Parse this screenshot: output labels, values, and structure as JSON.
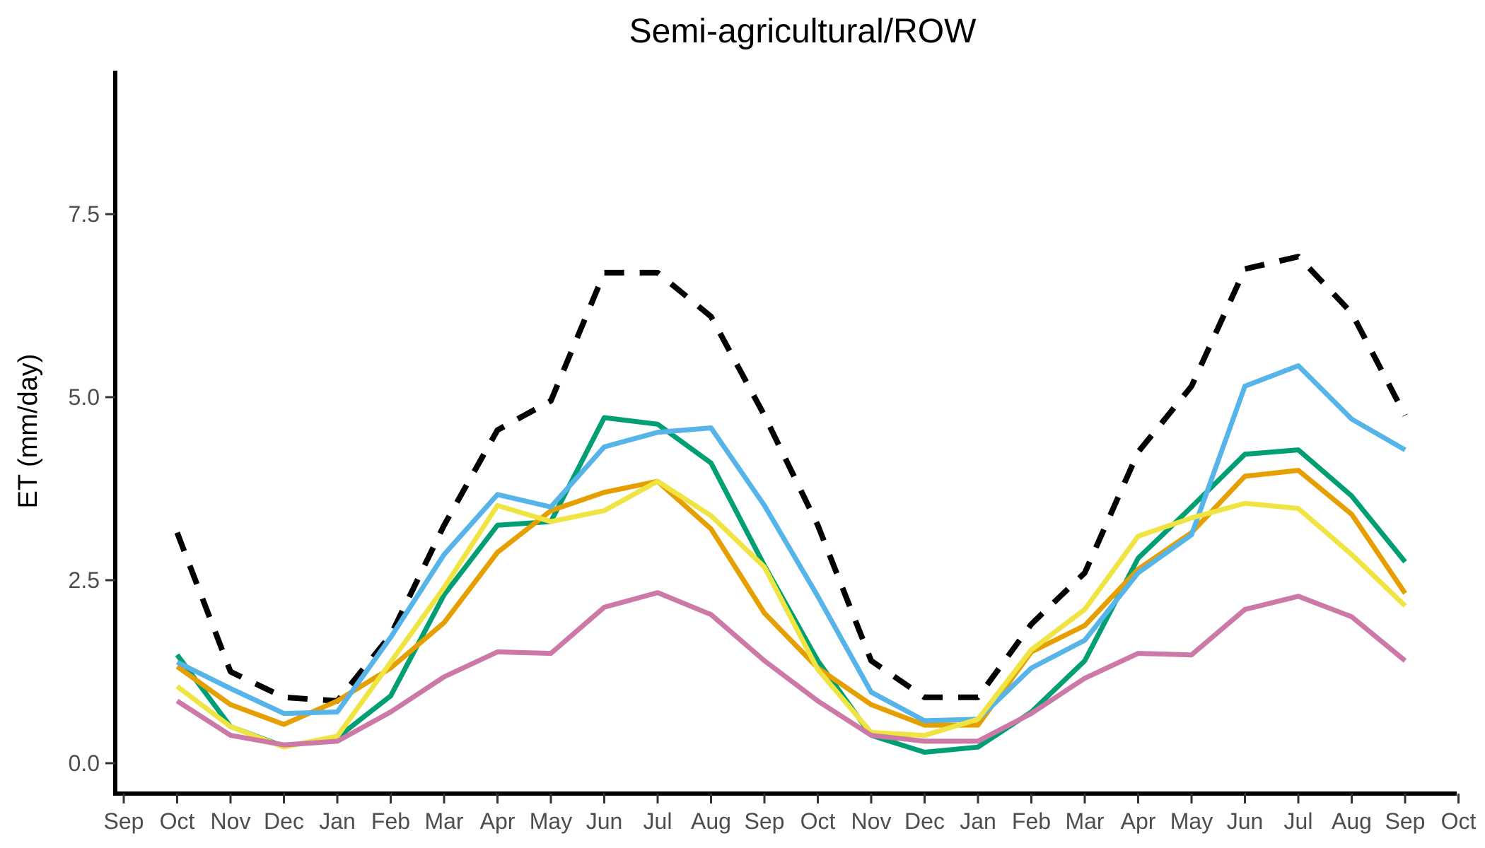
{
  "chart_data": {
    "type": "line",
    "title": "Semi-agricultural/ROW",
    "xlabel": "",
    "ylabel": "ET (mm/day)",
    "ylim": [
      -0.35,
      9.5
    ],
    "yticks": [
      0.0,
      2.5,
      5.0,
      7.5
    ],
    "ytick_labels": [
      "0.0",
      "2.5",
      "5.0",
      "7.5"
    ],
    "xtick_labels": [
      "Sep",
      "Oct",
      "Nov",
      "Dec",
      "Jan",
      "Feb",
      "Mar",
      "Apr",
      "May",
      "Jun",
      "Jul",
      "Aug",
      "Sep",
      "Oct",
      "Nov",
      "Dec",
      "Jan",
      "Feb",
      "Mar",
      "Apr",
      "May",
      "Jun",
      "Jul",
      "Aug",
      "Sep",
      "Oct"
    ],
    "x": [
      "Oct",
      "Nov",
      "Dec",
      "Jan",
      "Feb",
      "Mar",
      "Apr",
      "May",
      "Jun",
      "Jul",
      "Aug",
      "Sep",
      "Oct",
      "Nov",
      "Dec",
      "Jan",
      "Feb",
      "Mar",
      "Apr",
      "May",
      "Jun",
      "Jul",
      "Aug",
      "Sep"
    ],
    "grid": false,
    "legend": "none",
    "series": [
      {
        "color": "#000000",
        "dashed": true,
        "values": [
          3.15,
          1.25,
          0.9,
          0.85,
          1.75,
          3.25,
          4.55,
          4.95,
          6.7,
          6.7,
          6.1,
          4.75,
          3.25,
          1.4,
          0.9,
          0.9,
          1.9,
          2.6,
          4.25,
          5.15,
          6.75,
          6.92,
          6.15,
          4.75
        ]
      },
      {
        "color": "#009E73",
        "dashed": false,
        "values": [
          1.48,
          0.5,
          0.23,
          0.35,
          0.92,
          2.3,
          3.25,
          3.3,
          4.72,
          4.63,
          4.1,
          2.7,
          1.4,
          0.38,
          0.15,
          0.22,
          0.7,
          1.4,
          2.8,
          3.5,
          4.22,
          4.28,
          3.65,
          2.75
        ]
      },
      {
        "color": "#E69F00",
        "dashed": false,
        "values": [
          1.32,
          0.8,
          0.53,
          0.85,
          1.3,
          1.92,
          2.88,
          3.45,
          3.7,
          3.85,
          3.2,
          2.05,
          1.3,
          0.8,
          0.52,
          0.52,
          1.52,
          1.88,
          2.65,
          3.15,
          3.92,
          4.0,
          3.4,
          2.32
        ]
      },
      {
        "color": "#56B4E9",
        "dashed": false,
        "values": [
          1.38,
          1.02,
          0.68,
          0.7,
          1.72,
          2.85,
          3.67,
          3.5,
          4.32,
          4.52,
          4.58,
          3.52,
          2.28,
          0.97,
          0.58,
          0.6,
          1.3,
          1.68,
          2.6,
          3.12,
          5.15,
          5.43,
          4.7,
          4.28
        ]
      },
      {
        "color": "#F0E442",
        "dashed": false,
        "values": [
          1.05,
          0.5,
          0.22,
          0.37,
          1.38,
          2.4,
          3.52,
          3.3,
          3.45,
          3.85,
          3.38,
          2.68,
          1.28,
          0.42,
          0.38,
          0.6,
          1.55,
          2.1,
          3.1,
          3.35,
          3.55,
          3.48,
          2.85,
          2.15
        ]
      },
      {
        "color": "#CC79A7",
        "dashed": false,
        "values": [
          0.85,
          0.38,
          0.25,
          0.3,
          0.7,
          1.18,
          1.52,
          1.5,
          2.13,
          2.33,
          2.03,
          1.4,
          0.85,
          0.38,
          0.3,
          0.3,
          0.68,
          1.16,
          1.5,
          1.48,
          2.1,
          2.28,
          2.0,
          1.4
        ]
      }
    ]
  }
}
